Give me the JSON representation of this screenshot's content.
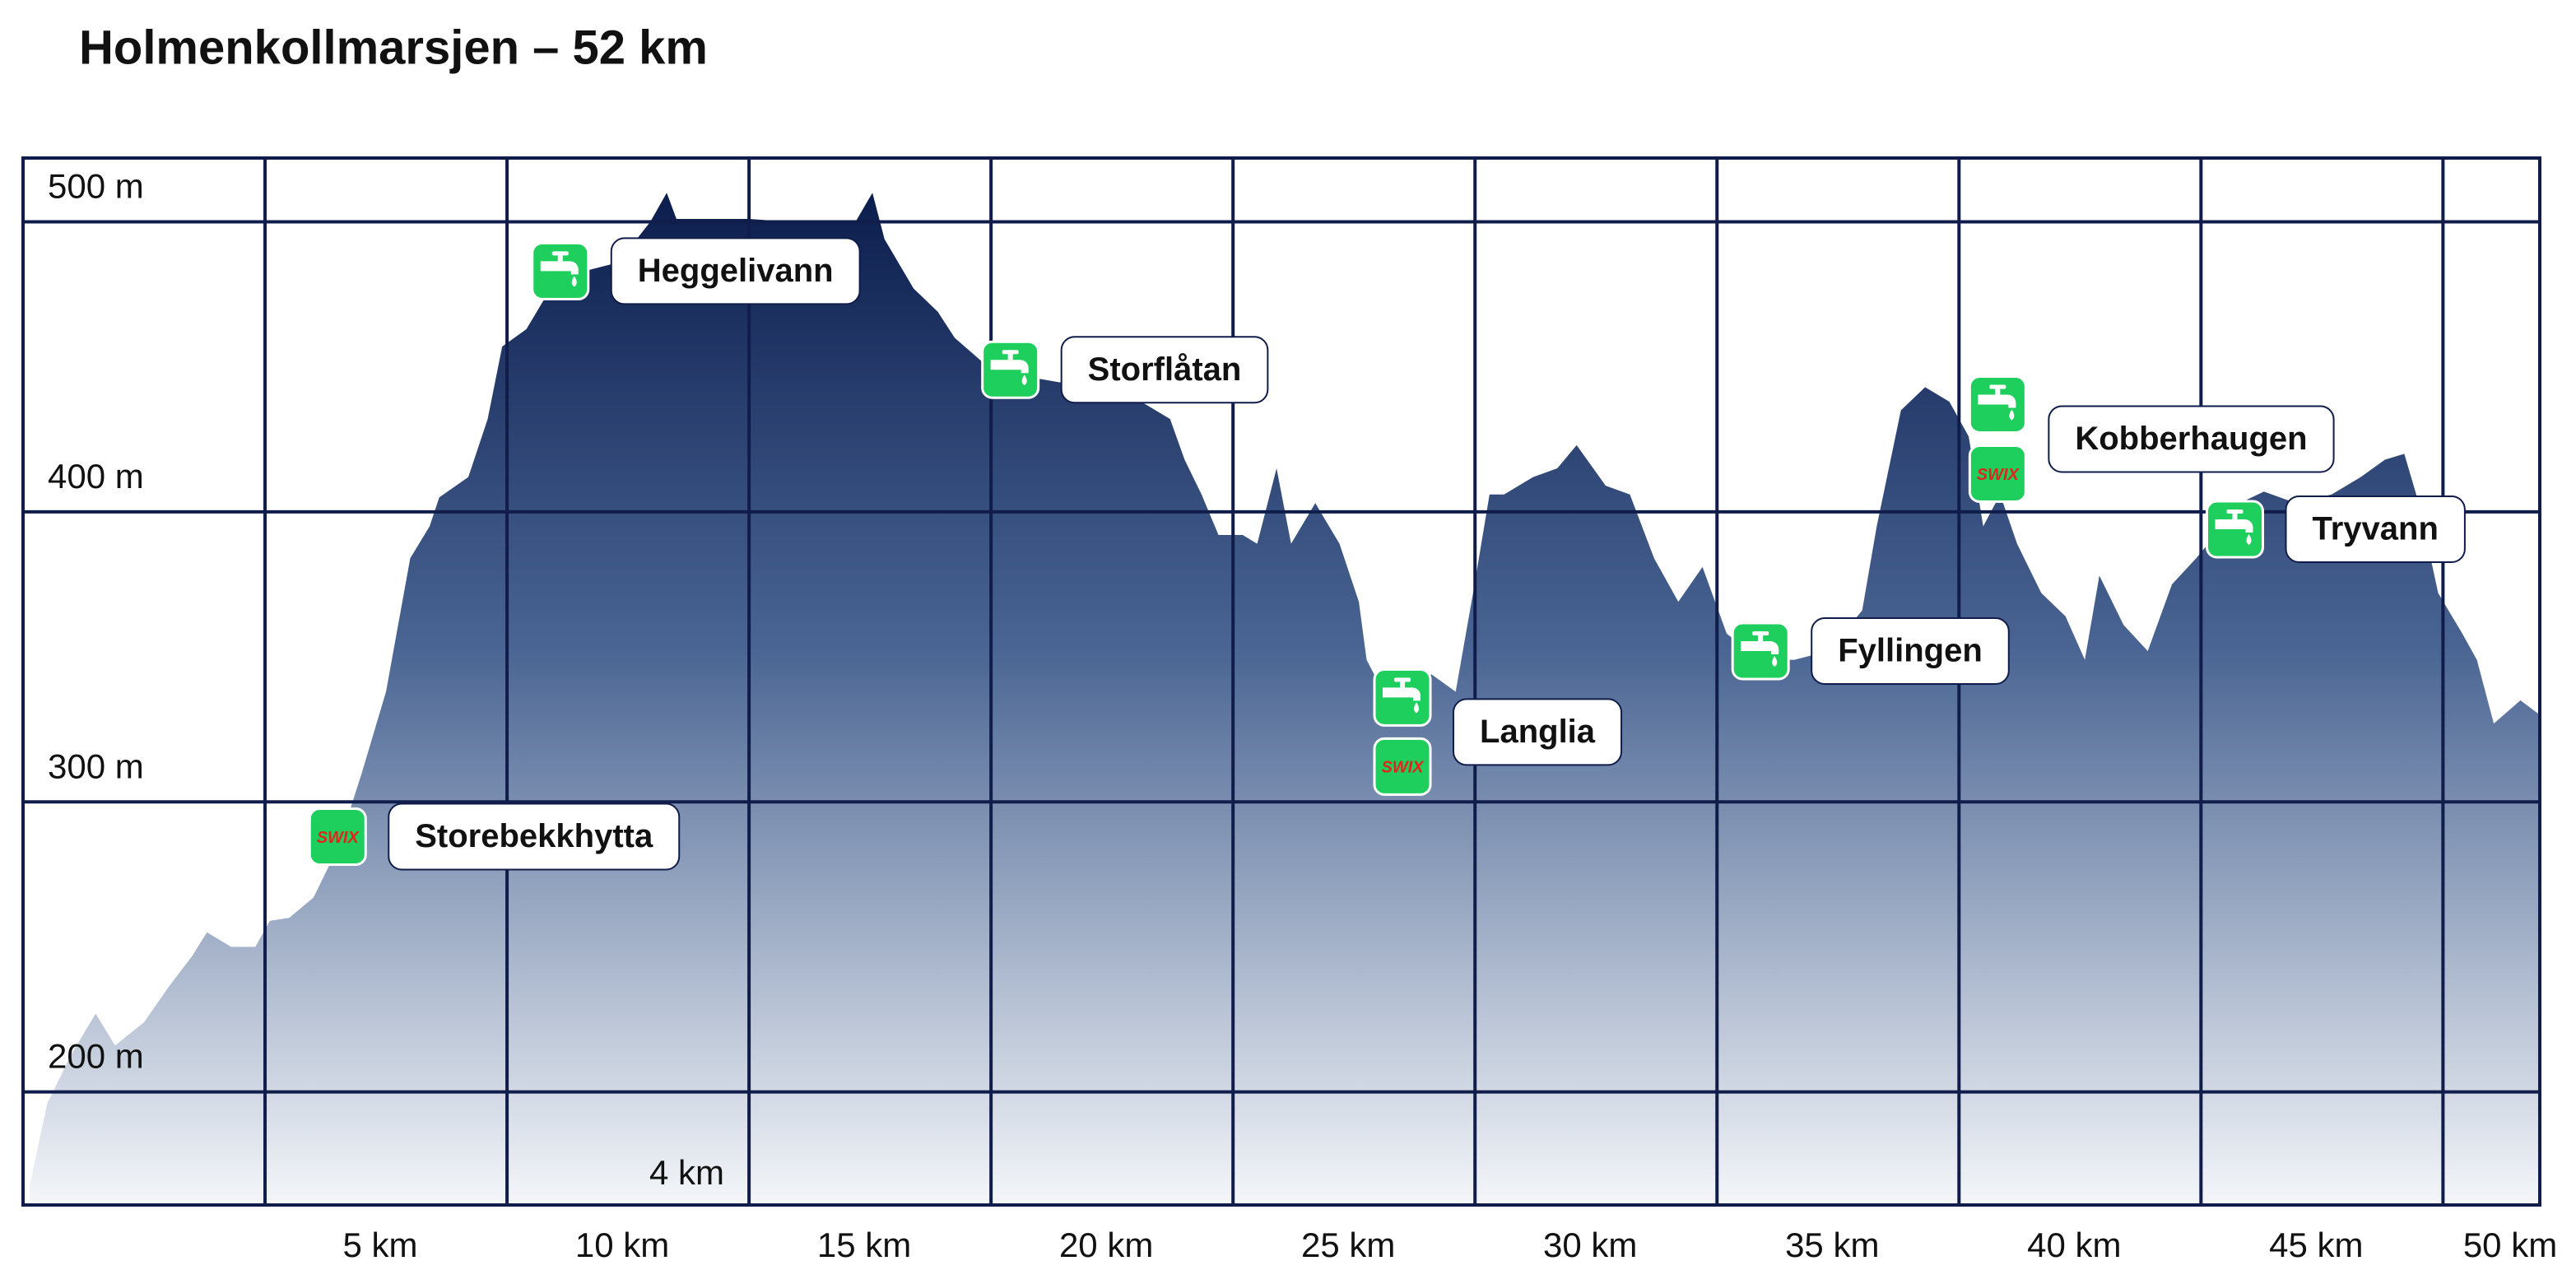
{
  "chart_data": {
    "type": "area",
    "title": "Holmenkollmarsjen – 52 km",
    "x": [
      0.14,
      0.5,
      1.0,
      1.5,
      1.9,
      2.5,
      3.0,
      3.5,
      3.8,
      4.3,
      4.8,
      5.1,
      5.5,
      6.0,
      6.5,
      7.0,
      7.5,
      8.0,
      8.4,
      8.6,
      9.2,
      9.6,
      9.9,
      10.4,
      10.9,
      11.6,
      12.3,
      12.96,
      13.3,
      13.5,
      14.1,
      15.0,
      15.85,
      17.2,
      17.55,
      17.8,
      18.4,
      18.9,
      19.25,
      19.8,
      20.3,
      20.95,
      22.0,
      23.0,
      23.7,
      24.0,
      24.35,
      24.7,
      25.2,
      25.5,
      25.9,
      26.2,
      26.7,
      27.2,
      27.6,
      27.76,
      28.1,
      28.6,
      29.1,
      29.6,
      29.96,
      30.3,
      30.6,
      31.2,
      31.7,
      32.1,
      32.7,
      33.2,
      33.7,
      34.2,
      34.7,
      35.2,
      35.9,
      36.6,
      37.3,
      38.0,
      38.3,
      38.8,
      39.3,
      39.8,
      40.2,
      40.5,
      40.85,
      41.2,
      41.7,
      42.2,
      42.6,
      42.9,
      43.4,
      43.9,
      44.4,
      44.9,
      45.3,
      45.8,
      46.3,
      46.96,
      47.7,
      48.3,
      48.8,
      49.2,
      49.5,
      49.9,
      50.4,
      50.7,
      51.05,
      51.6,
      52.0
    ],
    "values": [
      168,
      196,
      213,
      227,
      216,
      224,
      236,
      247,
      255,
      250,
      250,
      259,
      260,
      267,
      284,
      310,
      338,
      384,
      395,
      405,
      412,
      432,
      457,
      463,
      477,
      483,
      486,
      500,
      510,
      501,
      501,
      501,
      500,
      500,
      510,
      494,
      477,
      469,
      460,
      452,
      449,
      446,
      443,
      439,
      432,
      418,
      406,
      392,
      392,
      389,
      415,
      389,
      403,
      389,
      369,
      349,
      338,
      338,
      344,
      338,
      372,
      406,
      406,
      412,
      415,
      423,
      409,
      406,
      384,
      369,
      381,
      358,
      349,
      349,
      352,
      366,
      395,
      435,
      443,
      438,
      426,
      395,
      406,
      389,
      372,
      364,
      349,
      378,
      361,
      352,
      375,
      384,
      392,
      403,
      407,
      403,
      406,
      412,
      418,
      420,
      403,
      372,
      358,
      349,
      327,
      335,
      330
    ],
    "xlim": [
      0,
      52
    ],
    "ylim": [
      161,
      522
    ],
    "xticks": [
      {
        "value": 5,
        "label": "5 km"
      },
      {
        "value": 10,
        "label": "10 km"
      },
      {
        "value": 15,
        "label": "15 km"
      },
      {
        "value": 20,
        "label": "20 km"
      },
      {
        "value": 25,
        "label": "25 km"
      },
      {
        "value": 30,
        "label": "30 km"
      },
      {
        "value": 35,
        "label": "35 km"
      },
      {
        "value": 40,
        "label": "40 km"
      },
      {
        "value": 45,
        "label": "45 km"
      },
      {
        "value": 50,
        "label": "50 km"
      }
    ],
    "yticks": [
      {
        "value": 200,
        "label": "200 m"
      },
      {
        "value": 300,
        "label": "300 m"
      },
      {
        "value": 400,
        "label": "400 m"
      },
      {
        "value": 500,
        "label": "500 m"
      }
    ],
    "x_note": "4 km",
    "grid": true,
    "color_top": "#0b1d4d",
    "color_bottom": "#f4f6f9",
    "grid_color": "#101c4a",
    "icon_color": "#1fcf5d",
    "swix_color": "#e0261b",
    "swix_label": "SWIX",
    "stations": [
      {
        "name": "Storebekkhytta",
        "km": 6.5,
        "m": 288,
        "water": false,
        "swix": true
      },
      {
        "name": "Heggelivann",
        "km": 11.1,
        "m": 483,
        "water": true,
        "swix": false
      },
      {
        "name": "Storflåtan",
        "km": 20.4,
        "m": 449,
        "water": true,
        "swix": false
      },
      {
        "name": "Langlia",
        "km": 28.5,
        "m": 336,
        "water": true,
        "swix": true
      },
      {
        "name": "Fyllingen",
        "km": 35.9,
        "m": 352,
        "water": true,
        "swix": false
      },
      {
        "name": "Kobberhaugen",
        "km": 40.8,
        "m": 437,
        "water": true,
        "swix": true
      },
      {
        "name": "Tryvann",
        "km": 45.7,
        "m": 394,
        "water": true,
        "swix": false
      }
    ]
  }
}
